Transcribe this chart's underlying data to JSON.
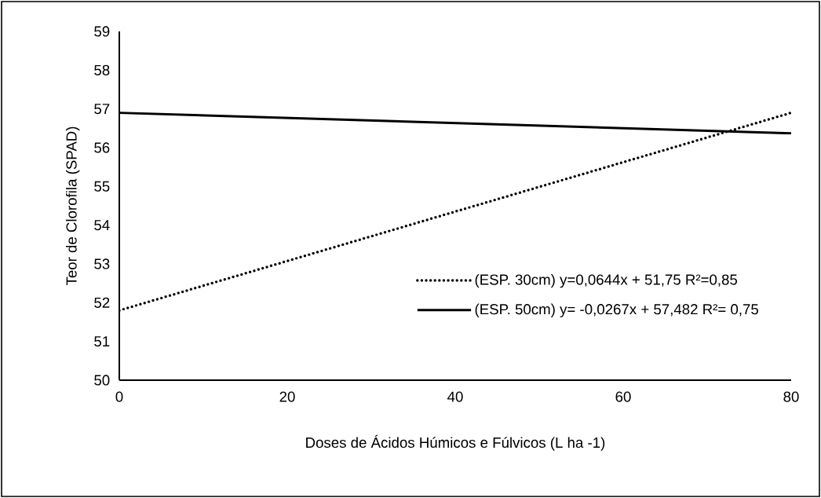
{
  "chart_data": {
    "type": "line",
    "xlabel": "Doses de Ácidos Húmicos e Fúlvicos (L ha -1)",
    "ylabel": "Teor de Clorofila (SPAD)",
    "x": [
      0,
      80
    ],
    "series": [
      {
        "name": "(ESP. 30cm) y=0,0644x + 51,75 R²=0,85",
        "color": "#000000",
        "values": [
          51.8,
          56.9
        ],
        "line_style": "dotted"
      },
      {
        "name": "(ESP. 50cm) y= -0,0267x + 57,482 R²= 0,75",
        "color": "#000000",
        "values": [
          56.9,
          56.37
        ],
        "line_style": "solid"
      }
    ],
    "xlim": [
      0,
      80
    ],
    "xticks": [
      0,
      20,
      40,
      60,
      80
    ],
    "ylim": [
      50,
      59
    ],
    "yticks": [
      50,
      51,
      52,
      53,
      54,
      55,
      56,
      57,
      58,
      59
    ],
    "grid": false,
    "legend": "bottom right",
    "marker": "none"
  }
}
